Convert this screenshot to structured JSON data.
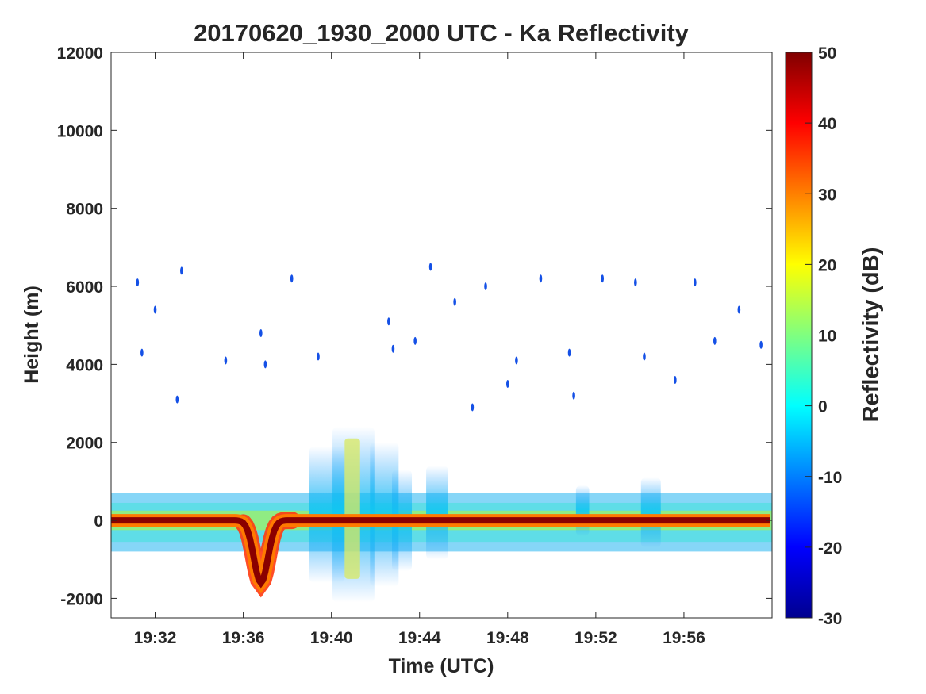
{
  "chart_data": {
    "type": "heatmap",
    "title": "20170620_1930_2000 UTC - Ka Reflectivity",
    "xlabel": "Time (UTC)",
    "ylabel": "Height (m)",
    "xlim": [
      "19:30",
      "20:00"
    ],
    "ylim": [
      -2500,
      12000
    ],
    "xticks": [
      "19:32",
      "19:36",
      "19:40",
      "19:44",
      "19:48",
      "19:52",
      "19:56"
    ],
    "yticks": [
      -2000,
      0,
      2000,
      4000,
      6000,
      8000,
      10000,
      12000
    ],
    "grid": false,
    "colorbar": {
      "label": "Reflectivity (dB)",
      "range": [
        -30,
        50
      ],
      "ticks": [
        -30,
        -20,
        -10,
        0,
        10,
        20,
        30,
        40,
        50
      ],
      "colormap": "jet",
      "colors": [
        "#00008f",
        "#0000ff",
        "#00ffff",
        "#ffff00",
        "#ff0000",
        "#800000"
      ]
    },
    "features": [
      {
        "name": "surface return",
        "time_range": [
          "19:30",
          "20:00"
        ],
        "height_m": 0,
        "reflectivity_dB": 50
      },
      {
        "name": "near-surface clutter",
        "time_range": [
          "19:30",
          "20:00"
        ],
        "height_range_m": [
          -700,
          700
        ],
        "reflectivity_dB": [
          -10,
          5
        ]
      },
      {
        "name": "surface dip",
        "time_range": [
          "19:36",
          "19:38"
        ],
        "min_height_m": -1600,
        "reflectivity_dB": [
          30,
          45
        ]
      },
      {
        "name": "convective cells",
        "time_range": [
          "19:39",
          "19:45"
        ],
        "max_height_m": 2400,
        "min_height_m": -2100,
        "reflectivity_dB": [
          -5,
          20
        ]
      },
      {
        "name": "sparse echoes",
        "time_range": [
          "19:30",
          "20:00"
        ],
        "height_range_m": [
          2500,
          6600
        ],
        "reflectivity_dB": [
          -25,
          -10
        ]
      }
    ]
  }
}
